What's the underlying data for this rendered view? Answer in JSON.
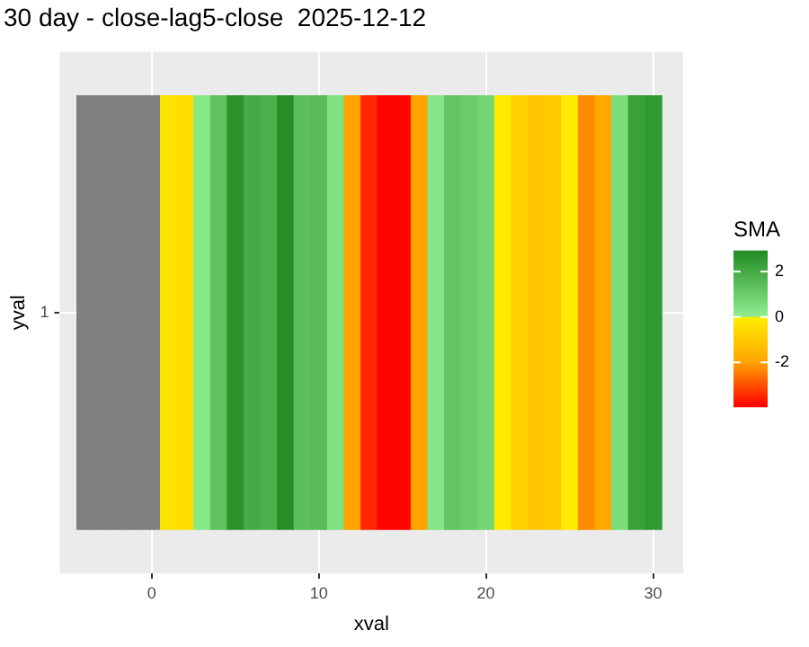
{
  "chart_data": {
    "type": "heatmap",
    "title": "30 day - close-lag5-close  2025-12-12",
    "xlabel": "xval",
    "ylabel": "yval",
    "clabel": "SMA",
    "x": [
      -4,
      -3,
      -2,
      -1,
      0,
      1,
      2,
      3,
      4,
      5,
      6,
      7,
      8,
      9,
      10,
      11,
      12,
      13,
      14,
      15,
      16,
      17,
      18,
      19,
      20,
      21,
      22,
      23,
      24,
      25,
      26,
      27,
      28,
      29,
      30
    ],
    "y_categories": [
      "1"
    ],
    "cells": [
      [
        null,
        null,
        null,
        null,
        null,
        -0.3,
        -0.4,
        0.2,
        1.3,
        2.7,
        2.0,
        1.8,
        2.8,
        1.4,
        1.5,
        0.4,
        -2.0,
        -3.5,
        -3.9,
        -3.9,
        -2.0,
        0.3,
        1.2,
        1.0,
        0.7,
        -0.1,
        -0.8,
        -1.1,
        -1.0,
        -0.1,
        -2.3,
        -1.9,
        0.5,
        2.3,
        2.5
      ]
    ],
    "xlim": [
      -5.5,
      31.8
    ],
    "xticks": [
      0,
      10,
      20,
      30
    ],
    "clim": [
      -3.96,
      2.93
    ],
    "cticks": [
      -2,
      0,
      2
    ],
    "grid": true
  }
}
